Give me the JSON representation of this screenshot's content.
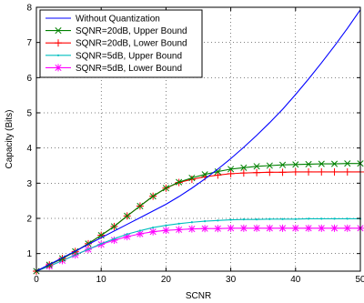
{
  "chart_data": {
    "type": "line",
    "title": "",
    "xlabel": "SCNR",
    "ylabel": "Capacity (Bits)",
    "xlim": [
      0,
      50
    ],
    "ylim": [
      0.5,
      8
    ],
    "xticks": [
      0,
      10,
      20,
      30,
      40,
      50
    ],
    "yticks": [
      1,
      2,
      3,
      4,
      5,
      6,
      7,
      8
    ],
    "grid": true,
    "legend_position": "top-left",
    "series": [
      {
        "name": "Without Quantization",
        "color": "#0000ff",
        "marker": "none",
        "x": [
          0,
          2,
          4,
          6,
          8,
          10,
          12,
          14,
          16,
          18,
          20,
          22,
          24,
          26,
          28,
          30,
          32,
          34,
          36,
          38,
          40,
          42,
          44,
          46,
          48,
          50
        ],
        "y": [
          0.5,
          0.69,
          0.88,
          1.07,
          1.26,
          1.45,
          1.64,
          1.83,
          2.02,
          2.21,
          2.4,
          2.62,
          2.86,
          3.12,
          3.4,
          3.7,
          4.02,
          4.36,
          4.72,
          5.1,
          5.52,
          5.96,
          6.42,
          6.9,
          7.4,
          7.93
        ]
      },
      {
        "name": "SQNR=20dB, Upper Bound",
        "color": "#008000",
        "marker": "x",
        "x": [
          0,
          2,
          4,
          6,
          8,
          10,
          12,
          14,
          16,
          18,
          20,
          22,
          24,
          26,
          28,
          30,
          32,
          34,
          36,
          38,
          40,
          42,
          44,
          46,
          48,
          50
        ],
        "y": [
          0.5,
          0.68,
          0.86,
          1.06,
          1.28,
          1.52,
          1.77,
          2.07,
          2.35,
          2.63,
          2.86,
          3.03,
          3.15,
          3.25,
          3.33,
          3.4,
          3.44,
          3.48,
          3.5,
          3.52,
          3.53,
          3.54,
          3.55,
          3.55,
          3.56,
          3.56
        ]
      },
      {
        "name": "SQNR=20dB, Lower Bound",
        "color": "#ff0000",
        "marker": "+",
        "x": [
          0,
          2,
          4,
          6,
          8,
          10,
          12,
          14,
          16,
          18,
          20,
          22,
          24,
          26,
          28,
          30,
          32,
          34,
          36,
          38,
          40,
          42,
          44,
          46,
          48,
          50
        ],
        "y": [
          0.5,
          0.68,
          0.86,
          1.06,
          1.28,
          1.52,
          1.77,
          2.07,
          2.35,
          2.63,
          2.86,
          3.02,
          3.11,
          3.18,
          3.23,
          3.27,
          3.29,
          3.3,
          3.31,
          3.31,
          3.32,
          3.32,
          3.32,
          3.32,
          3.32,
          3.32
        ]
      },
      {
        "name": "SQNR=5dB, Upper Bound",
        "color": "#00bfbf",
        "marker": "point",
        "x": [
          0,
          2,
          4,
          6,
          8,
          10,
          12,
          14,
          16,
          18,
          20,
          22,
          24,
          26,
          28,
          30,
          32,
          34,
          36,
          38,
          40,
          42,
          44,
          46,
          48,
          50
        ],
        "y": [
          0.5,
          0.64,
          0.8,
          0.96,
          1.12,
          1.28,
          1.42,
          1.55,
          1.65,
          1.74,
          1.8,
          1.85,
          1.89,
          1.92,
          1.94,
          1.96,
          1.97,
          1.97,
          1.98,
          1.98,
          1.98,
          1.99,
          1.99,
          1.99,
          1.99,
          1.99
        ]
      },
      {
        "name": "SQNR=5dB, Lower Bound",
        "color": "#ff00ff",
        "marker": "asterisk",
        "x": [
          0,
          2,
          4,
          6,
          8,
          10,
          12,
          14,
          16,
          18,
          20,
          22,
          24,
          26,
          28,
          30,
          32,
          34,
          36,
          38,
          40,
          42,
          44,
          46,
          48,
          50
        ],
        "y": [
          0.5,
          0.64,
          0.8,
          0.96,
          1.12,
          1.26,
          1.38,
          1.48,
          1.56,
          1.62,
          1.66,
          1.68,
          1.7,
          1.71,
          1.71,
          1.72,
          1.72,
          1.72,
          1.72,
          1.72,
          1.72,
          1.72,
          1.72,
          1.72,
          1.72,
          1.72
        ]
      }
    ]
  }
}
